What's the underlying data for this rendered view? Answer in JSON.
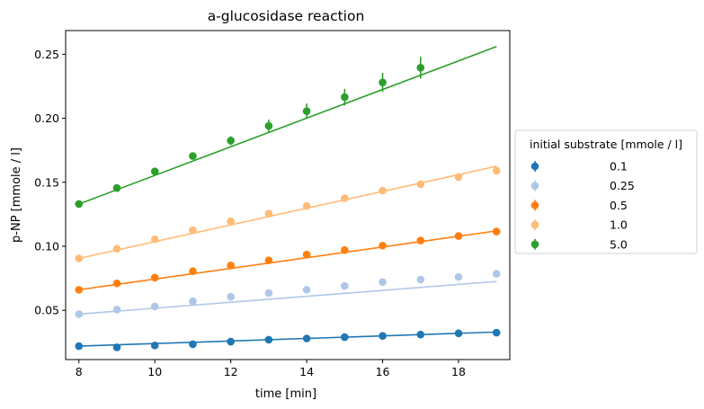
{
  "chart_data": {
    "type": "scatter",
    "title": "a-glucosidase reaction",
    "xlabel": "time [min]",
    "ylabel": "p-NP [mmole / l]",
    "xlim": [
      7.65,
      19.35
    ],
    "ylim": [
      0.0115,
      0.2685
    ],
    "xticks": [
      8,
      10,
      12,
      14,
      16,
      18
    ],
    "yticks": [
      0.05,
      0.1,
      0.15,
      0.2,
      0.25
    ],
    "xtick_labels": [
      "8",
      "10",
      "12",
      "14",
      "16",
      "18"
    ],
    "ytick_labels": [
      "0.05",
      "0.10",
      "0.15",
      "0.20",
      "0.25"
    ],
    "grid": false,
    "legend_title": "initial substrate [mmole / l]",
    "legend_position": "center-right-outside",
    "x": [
      8,
      9,
      10,
      11,
      12,
      13,
      14,
      15,
      16,
      17,
      18,
      19
    ],
    "series": [
      {
        "name": "0.1",
        "color": "#1f77b4",
        "values": [
          0.022,
          0.021,
          0.0225,
          0.0235,
          0.0255,
          0.027,
          0.028,
          0.029,
          0.03,
          0.031,
          0.032,
          0.0325
        ],
        "errors": [
          0.002,
          0.0015,
          0.0015,
          0.0015,
          0.0015,
          0.0015,
          0.0015,
          0.0015,
          0.0015,
          0.0015,
          0.0015,
          0.0015
        ],
        "fit": [
          0.022,
          0.033
        ]
      },
      {
        "name": "0.25",
        "color": "#aec7e8",
        "values": [
          0.047,
          0.0505,
          0.053,
          0.057,
          0.0605,
          0.0635,
          0.066,
          0.069,
          0.072,
          0.074,
          0.076,
          0.0785
        ],
        "errors": [
          0.0015,
          0.0015,
          0.0015,
          0.0015,
          0.0015,
          0.0015,
          0.0015,
          0.0015,
          0.0015,
          0.0015,
          0.0015,
          0.0015
        ],
        "fit": [
          0.047,
          0.0725
        ]
      },
      {
        "name": "0.5",
        "color": "#ff7f0e",
        "values": [
          0.066,
          0.071,
          0.0755,
          0.0805,
          0.085,
          0.089,
          0.0935,
          0.097,
          0.1005,
          0.1045,
          0.108,
          0.1115
        ],
        "errors": [
          0.0015,
          0.0015,
          0.0015,
          0.0015,
          0.0015,
          0.0015,
          0.0015,
          0.0015,
          0.0015,
          0.0015,
          0.0015,
          0.0015
        ],
        "fit": [
          0.066,
          0.112
        ]
      },
      {
        "name": "1.0",
        "color": "#ffbb78",
        "values": [
          0.0905,
          0.098,
          0.1055,
          0.1125,
          0.1195,
          0.1255,
          0.1315,
          0.1375,
          0.1435,
          0.1485,
          0.154,
          0.159
        ],
        "errors": [
          0.0015,
          0.0015,
          0.0015,
          0.0015,
          0.0015,
          0.0015,
          0.0015,
          0.0015,
          0.0015,
          0.0015,
          0.0015,
          0.0015
        ],
        "fit": [
          0.0905,
          0.1625
        ]
      },
      {
        "name": "5.0",
        "color": "#2ca02c",
        "values": [
          0.133,
          0.1455,
          0.1585,
          0.1705,
          0.1825,
          0.194,
          0.2055,
          0.2165,
          0.228,
          0.2395
        ],
        "errors": [
          0.0015,
          0.0015,
          0.002,
          0.002,
          0.0035,
          0.005,
          0.006,
          0.0065,
          0.0075,
          0.0085
        ],
        "fit": [
          0.133,
          0.256
        ],
        "x": [
          8,
          9,
          10,
          11,
          12,
          13,
          14,
          15,
          16,
          17
        ]
      }
    ]
  }
}
